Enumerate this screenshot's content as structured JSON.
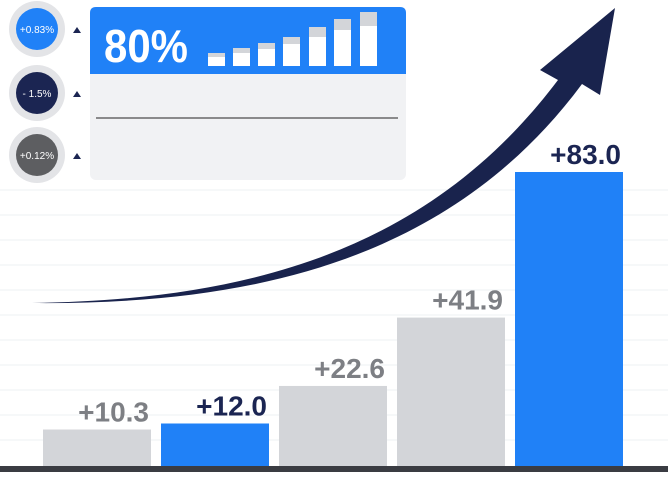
{
  "chart_data": {
    "type": "bar",
    "categories": [
      null,
      null,
      null,
      null,
      null
    ],
    "values": [
      10.3,
      12.0,
      22.6,
      41.9,
      83.0
    ],
    "value_labels": [
      "+10.3",
      "+12.0",
      "+22.6",
      "+41.9",
      "+83.0"
    ],
    "colors": [
      "#d3d5d9",
      "#2081f7",
      "#d3d5d9",
      "#d3d5d9",
      "#2081f7"
    ],
    "label_colors": [
      "#7d7f84",
      "#1b2552",
      "#7d7f84",
      "#7d7f84",
      "#1b2552"
    ]
  },
  "card": {
    "value": "80%"
  },
  "badges": [
    "+0.83%",
    "- 1.5%",
    "+0.12%"
  ]
}
